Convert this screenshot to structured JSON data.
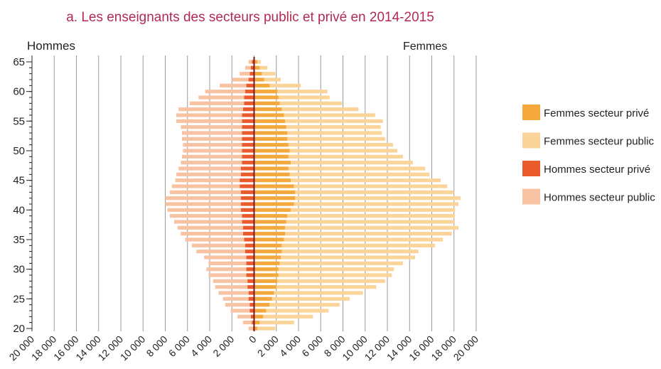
{
  "chart_data": {
    "type": "pyramid",
    "title": "a. Les enseignants des secteurs public et privé en 2014-2015",
    "left_label": "Hommes",
    "right_label": "Femmes",
    "categories": [
      20,
      21,
      22,
      23,
      24,
      25,
      26,
      27,
      28,
      29,
      30,
      31,
      32,
      33,
      34,
      35,
      36,
      37,
      38,
      39,
      40,
      41,
      42,
      43,
      44,
      45,
      46,
      47,
      48,
      49,
      50,
      51,
      52,
      53,
      54,
      55,
      56,
      57,
      58,
      59,
      60,
      61,
      62,
      63,
      64,
      65
    ],
    "ylim": [
      20,
      65
    ],
    "yticks": [
      20,
      25,
      30,
      35,
      40,
      45,
      50,
      55,
      60,
      65
    ],
    "xlim": [
      -20000,
      20000
    ],
    "xticks": [
      {
        "value": -20000,
        "label": "20 000"
      },
      {
        "value": -18000,
        "label": "18 000"
      },
      {
        "value": -16000,
        "label": "16 000"
      },
      {
        "value": -14000,
        "label": "14 000"
      },
      {
        "value": -12000,
        "label": "12 000"
      },
      {
        "value": -10000,
        "label": "10 000"
      },
      {
        "value": -8000,
        "label": "8 000"
      },
      {
        "value": -6000,
        "label": "6 000"
      },
      {
        "value": -4000,
        "label": "4 000"
      },
      {
        "value": -2000,
        "label": "2 000"
      },
      0,
      {
        "value": 2000,
        "label": "2 000"
      },
      {
        "value": 4000,
        "label": "4 000"
      },
      {
        "value": 6000,
        "label": "6 000"
      },
      {
        "value": 8000,
        "label": "8 000"
      },
      {
        "value": 10000,
        "label": "10 000"
      },
      {
        "value": 12000,
        "label": "12 000"
      },
      {
        "value": 14000,
        "label": "14 000"
      },
      {
        "value": 16000,
        "label": "16 000"
      },
      {
        "value": 18000,
        "label": "18 000"
      },
      {
        "value": 20000,
        "label": "20 000"
      }
    ],
    "grid": true,
    "series": [
      {
        "name": "Femmes secteur privé",
        "color": "#f5a93c",
        "side": "right",
        "values": [
          300,
          500,
          800,
          1100,
          1400,
          1600,
          1800,
          2000,
          2100,
          2200,
          2200,
          2300,
          2400,
          2500,
          2500,
          2700,
          2800,
          2800,
          2900,
          3000,
          3300,
          3600,
          3700,
          3700,
          3600,
          3300,
          3200,
          3100,
          3300,
          3100,
          3200,
          3100,
          3000,
          3000,
          2900,
          2800,
          2700,
          2500,
          2300,
          2200,
          2100,
          1400,
          900,
          700,
          500,
          300
        ]
      },
      {
        "name": "Femmes secteur public",
        "color": "#fbd49a",
        "side": "right",
        "values": [
          1600,
          3100,
          4500,
          5600,
          6300,
          7000,
          8000,
          9000,
          9700,
          10200,
          10400,
          11100,
          12100,
          12300,
          13800,
          14300,
          15000,
          15600,
          15100,
          15100,
          14800,
          14800,
          14900,
          14300,
          13800,
          13500,
          12600,
          12300,
          11000,
          10300,
          9700,
          9400,
          8800,
          8500,
          8500,
          8800,
          8200,
          6900,
          5600,
          4600,
          4500,
          2800,
          1500,
          1200,
          700,
          300
        ]
      },
      {
        "name": "Hommes secteur privé",
        "color": "#e95a2c",
        "side": "left",
        "values": [
          100,
          200,
          300,
          400,
          400,
          500,
          500,
          600,
          600,
          700,
          700,
          700,
          700,
          800,
          800,
          900,
          1000,
          1000,
          1100,
          1100,
          1200,
          1200,
          1200,
          1200,
          1300,
          1300,
          1200,
          1200,
          1100,
          1100,
          1100,
          1100,
          1100,
          1100,
          1100,
          1100,
          1100,
          1000,
          900,
          900,
          800,
          700,
          500,
          400,
          300,
          200
        ]
      },
      {
        "name": "Hommes secteur public",
        "color": "#f8c3a3",
        "side": "left",
        "values": [
          400,
          800,
          1200,
          1700,
          2200,
          2300,
          2700,
          2900,
          3100,
          3400,
          3600,
          3400,
          3800,
          4400,
          4800,
          5300,
          5600,
          5900,
          6100,
          6500,
          6600,
          6800,
          6800,
          6400,
          6100,
          5800,
          5800,
          5600,
          5500,
          5400,
          5300,
          5300,
          5400,
          5400,
          5500,
          5900,
          5900,
          5800,
          4900,
          4100,
          3600,
          2400,
          1500,
          900,
          500,
          300
        ]
      }
    ]
  }
}
